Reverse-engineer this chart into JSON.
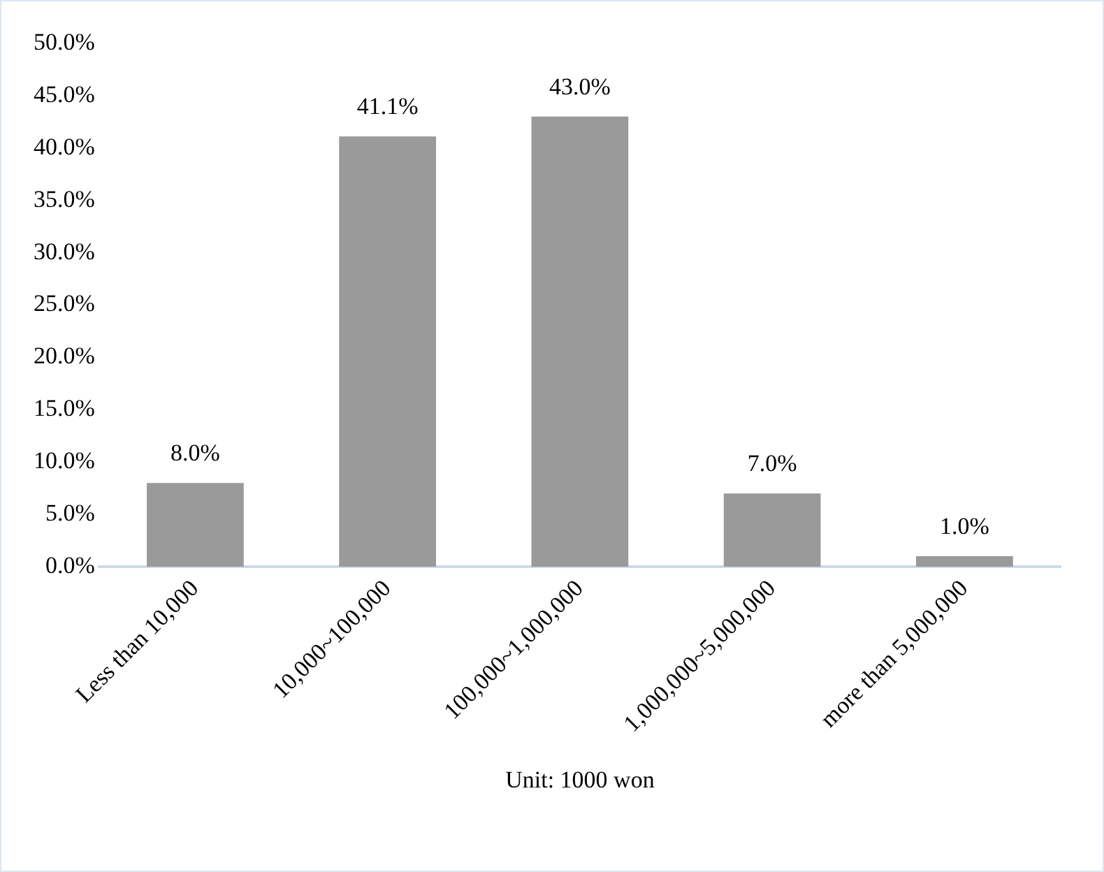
{
  "chart_data": {
    "type": "bar",
    "xlabel": "Unit: 1000 won",
    "categories": [
      "Less than 10,000",
      "10,000~100,000",
      "100,000~1,000,000",
      "1,000,000~5,000,000",
      "more than 5,000,000"
    ],
    "values": [
      8.0,
      41.1,
      43.0,
      7.0,
      1.0
    ],
    "value_labels": [
      "8.0%",
      "41.1%",
      "43.0%",
      "7.0%",
      "1.0%"
    ],
    "color": "#9a9a9a",
    "ylim": [
      0,
      50
    ],
    "yticks": [
      {
        "value": 0,
        "label": "0.0%"
      },
      {
        "value": 5,
        "label": "5.0%"
      },
      {
        "value": 10,
        "label": "10.0%"
      },
      {
        "value": 15,
        "label": "15.0%"
      },
      {
        "value": 20,
        "label": "20.0%"
      },
      {
        "value": 25,
        "label": "25.0%"
      },
      {
        "value": 30,
        "label": "30.0%"
      },
      {
        "value": 35,
        "label": "35.0%"
      },
      {
        "value": 40,
        "label": "40.0%"
      },
      {
        "value": 45,
        "label": "45.0%"
      },
      {
        "value": 50,
        "label": "50.0%"
      }
    ],
    "grid": false
  }
}
